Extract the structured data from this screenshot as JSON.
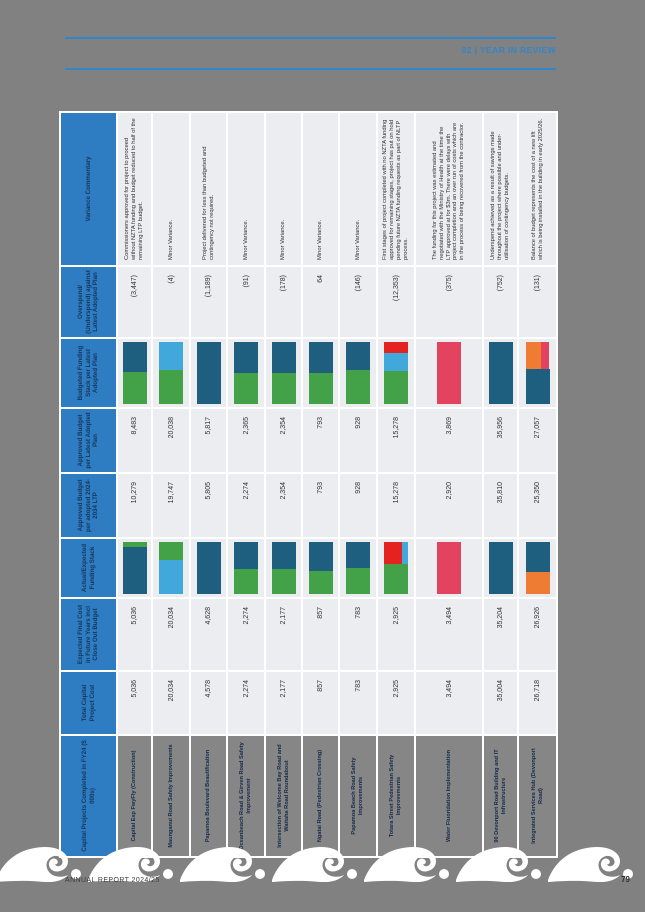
{
  "page_background": "#818181",
  "header": {
    "section_label": "02 | YEAR IN REVIEW"
  },
  "footer": {
    "report_title": "ANNUAL REPORT 2024/25",
    "page_number": "79"
  },
  "colors": {
    "accent_blue": "#2f86c9",
    "header_blue": "#2e7dc2",
    "cell_bg": "#ebedf1",
    "name_bg": "#868686",
    "teal": "#1e5f80",
    "green": "#43a247",
    "lightblue": "#41a8dc",
    "crimson": "#e3435f",
    "red": "#e42320",
    "orange": "#ef7c33"
  },
  "table": {
    "columns": [
      "Capital Projects Completed in FY24 ($ 000s)",
      "Total Capital Project Cost",
      "Expected Final Cost in Future Years incl Close Out Budget",
      "Actual/Expected Funding Stack",
      "Approved Budget per adopted 2024-2034 LTP",
      "Approved Budget per Latest Adopted Plan",
      "Budgeted Funding Stack per Latest Adopted Plan",
      "Overspend/ (Underspend) against Latest Adopted Plan",
      "Variance Commentary"
    ],
    "rows": [
      {
        "name": "Capital Exp FwyFly (Construction)",
        "total_capital_project_cost": "5,036",
        "expected_final_cost": "5,036",
        "actual_funding_stack": [
          {
            "color": "teal",
            "pct": 90
          },
          {
            "color": "green",
            "pct": 10
          }
        ],
        "approved_budget_ltp": "10,279",
        "approved_budget_latest": "8,483",
        "budgeted_funding_stack": [
          {
            "color": "green",
            "pct": 52
          },
          {
            "color": "teal",
            "pct": 48
          }
        ],
        "overspend": "(3,447)",
        "commentary": "Commissioners approved for project to proceed without NZTA funding and budget reduced to half of the remaining LTP budget."
      },
      {
        "name": "Maunganui Road Safety Improvements",
        "total_capital_project_cost": "20,034",
        "expected_final_cost": "20,034",
        "actual_funding_stack": [
          {
            "color": "lightblue",
            "pct": 65
          },
          {
            "color": "green",
            "pct": 35
          }
        ],
        "approved_budget_ltp": "19,747",
        "approved_budget_latest": "20,038",
        "budgeted_funding_stack": [
          {
            "color": "green",
            "pct": 55
          },
          {
            "color": "lightblue",
            "pct": 45
          }
        ],
        "overspend": "(4)",
        "commentary": "Minor Variance."
      },
      {
        "name": "Papamoa Boulevard Beautification",
        "total_capital_project_cost": "4,578",
        "expected_final_cost": "4,628",
        "actual_funding_stack": [
          {
            "color": "teal",
            "pct": 100
          }
        ],
        "approved_budget_ltp": "5,805",
        "approved_budget_latest": "5,817",
        "budgeted_funding_stack": [
          {
            "color": "teal",
            "pct": 100
          }
        ],
        "overspend": "(1,189)",
        "commentary": "Project delivered for less than budgeted and contingency not required."
      },
      {
        "name": "Oceanbeach Road & Girven Road Safety Improvement",
        "total_capital_project_cost": "2,274",
        "expected_final_cost": "2,274",
        "actual_funding_stack": [
          {
            "color": "green",
            "pct": 48
          },
          {
            "color": "teal",
            "pct": 52
          }
        ],
        "approved_budget_ltp": "2,274",
        "approved_budget_latest": "2,365",
        "budgeted_funding_stack": [
          {
            "color": "green",
            "pct": 50
          },
          {
            "color": "teal",
            "pct": 50
          }
        ],
        "overspend": "(91)",
        "commentary": "Minor Variance."
      },
      {
        "name": "Intersection of Welcome Bay Road and Waitaha Road Roundabout",
        "total_capital_project_cost": "2,177",
        "expected_final_cost": "2,177",
        "actual_funding_stack": [
          {
            "color": "green",
            "pct": 48
          },
          {
            "color": "teal",
            "pct": 52
          }
        ],
        "approved_budget_ltp": "2,354",
        "approved_budget_latest": "2,354",
        "budgeted_funding_stack": [
          {
            "color": "green",
            "pct": 50
          },
          {
            "color": "teal",
            "pct": 50
          }
        ],
        "overspend": "(178)",
        "commentary": "Minor Variance."
      },
      {
        "name": "Ngatai Road (Pedestrian Crossing)",
        "total_capital_project_cost": "857",
        "expected_final_cost": "857",
        "actual_funding_stack": [
          {
            "color": "green",
            "pct": 45
          },
          {
            "color": "teal",
            "pct": 55
          }
        ],
        "approved_budget_ltp": "793",
        "approved_budget_latest": "793",
        "budgeted_funding_stack": [
          {
            "color": "green",
            "pct": 50
          },
          {
            "color": "teal",
            "pct": 50
          }
        ],
        "overspend": "64",
        "commentary": "Minor Variance."
      },
      {
        "name": "Papamoa Beach Road Safety Improvements",
        "total_capital_project_cost": "783",
        "expected_final_cost": "783",
        "actual_funding_stack": [
          {
            "color": "green",
            "pct": 50
          },
          {
            "color": "teal",
            "pct": 50
          }
        ],
        "approved_budget_ltp": "928",
        "approved_budget_latest": "928",
        "budgeted_funding_stack": [
          {
            "color": "green",
            "pct": 55
          },
          {
            "color": "teal",
            "pct": 45
          }
        ],
        "overspend": "(146)",
        "commentary": "Minor Variance."
      },
      {
        "name": "Totara Street Pedestrian Safety Improvements",
        "total_capital_project_cost": "2,925",
        "expected_final_cost": "2,925",
        "actual_funding_stack": [
          {
            "color": "green",
            "pct": 57
          },
          {
            "pct": 43,
            "split": [
              {
                "color": "red",
                "pct": 75
              },
              {
                "color": "lightblue",
                "pct": 25
              }
            ]
          }
        ],
        "approved_budget_ltp": "15,278",
        "approved_budget_latest": "15,278",
        "budgeted_funding_stack": [
          {
            "color": "green",
            "pct": 53
          },
          {
            "color": "lightblue",
            "pct": 30
          },
          {
            "color": "red",
            "pct": 17
          }
        ],
        "overspend": "(12,353)",
        "commentary": "First stages of project completed with no NZTA funding approved for remaining stages, project has put on hold pending future NZTA funding requests as part of NLTP process."
      },
      {
        "name": "Water Fluoridation Implementation",
        "total_capital_project_cost": "3,494",
        "expected_final_cost": "3,494",
        "actual_funding_stack": [
          {
            "color": "crimson",
            "pct": 100
          }
        ],
        "approved_budget_ltp": "2,920",
        "approved_budget_latest": "3,869",
        "budgeted_funding_stack": [
          {
            "color": "crimson",
            "pct": 100
          }
        ],
        "overspend": "(375)",
        "commentary": "The funding for this project was estimated and negotiated with the Ministry of Health at the time the LTP approved at for $3m. There were delays with project completion and an over run of costs which are in the process of being recovered from the contractor."
      },
      {
        "name": "90 Devonport Road Building and IT Infrastructure",
        "total_capital_project_cost": "35,004",
        "expected_final_cost": "35,204",
        "actual_funding_stack": [
          {
            "color": "teal",
            "pct": 100
          }
        ],
        "approved_budget_ltp": "35,810",
        "approved_budget_latest": "35,956",
        "budgeted_funding_stack": [
          {
            "color": "teal",
            "pct": 100
          }
        ],
        "overspend": "(752)",
        "commentary": "Underspend achieved as a result of savings made throughout the project where possible and under-utilisation of contingency budgets."
      },
      {
        "name": "Integrated Services Hub (Devonport Road)",
        "total_capital_project_cost": "26,718",
        "expected_final_cost": "26,926",
        "actual_funding_stack": [
          {
            "color": "orange",
            "pct": 42
          },
          {
            "color": "teal",
            "pct": 58
          }
        ],
        "approved_budget_ltp": "25,350",
        "approved_budget_latest": "27,057",
        "budgeted_funding_stack": [
          {
            "color": "teal",
            "pct": 57
          },
          {
            "pct": 43,
            "split": [
              {
                "color": "orange",
                "pct": 65
              },
              {
                "color": "crimson",
                "pct": 35
              }
            ]
          }
        ],
        "overspend": "(131)",
        "commentary": "Balance of budget represents the cost of a new lift which is being installed in the building in early 2025/26."
      }
    ]
  }
}
